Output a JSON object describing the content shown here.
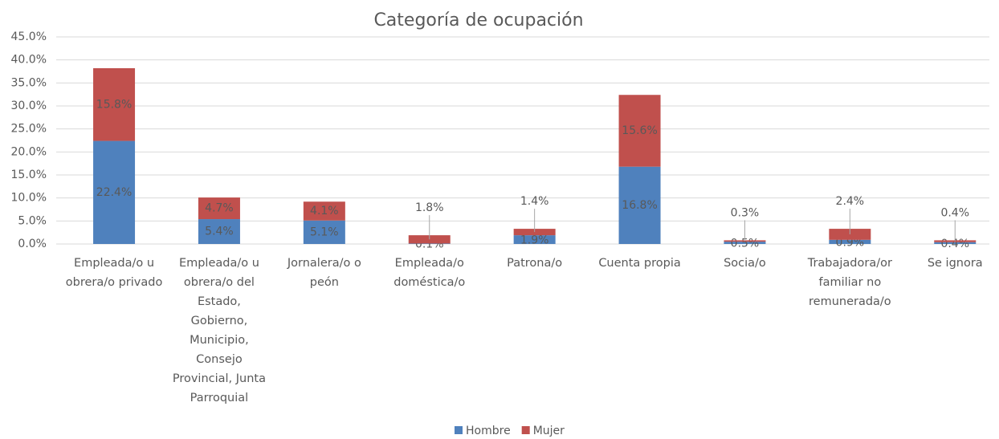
{
  "chart_data": {
    "type": "stacked-bar",
    "title": "Categoría de ocupación",
    "categories": [
      "Empleada/o u obrera/o privado",
      "Empleada/o u obrera/o del Estado, Gobierno, Municipio, Consejo Provincial, Junta Parroquial",
      "Jornalera/o o peón",
      "Empleada/o doméstica/o",
      "Patrona/o",
      "Cuenta propia",
      "Socia/o",
      "Trabajadora/or familiar no remunerada/o",
      "Se ignora"
    ],
    "series": [
      {
        "name": "Hombre",
        "color": "#4f81bd",
        "values": [
          22.4,
          5.4,
          5.1,
          0.1,
          1.9,
          16.8,
          0.5,
          0.9,
          0.4
        ],
        "value_labels": [
          "22.4%",
          "5.4%",
          "5.1%",
          "0.1%",
          "1.9%",
          "16.8%",
          "0.5%",
          "0.9%",
          "0.4%"
        ]
      },
      {
        "name": "Mujer",
        "color": "#c0504d",
        "values": [
          15.8,
          4.7,
          4.1,
          1.8,
          1.4,
          15.6,
          0.3,
          2.4,
          0.4
        ],
        "value_labels": [
          "15.8%",
          "4.7%",
          "4.1%",
          "1.8%",
          "1.4%",
          "15.6%",
          "0.3%",
          "2.4%",
          "0.4%"
        ]
      }
    ],
    "ylim": [
      0,
      45
    ],
    "yticks": [
      {
        "value": 0,
        "label": "0.0%"
      },
      {
        "value": 5,
        "label": "5.0%"
      },
      {
        "value": 10,
        "label": "10.0%"
      },
      {
        "value": 15,
        "label": "15.0%"
      },
      {
        "value": 20,
        "label": "20.0%"
      },
      {
        "value": 25,
        "label": "25.0%"
      },
      {
        "value": 30,
        "label": "30.0%"
      },
      {
        "value": 35,
        "label": "35.0%"
      },
      {
        "value": 40,
        "label": "40.0%"
      },
      {
        "value": 45,
        "label": "45.0%"
      }
    ],
    "grid": true,
    "legend": "bottom"
  }
}
